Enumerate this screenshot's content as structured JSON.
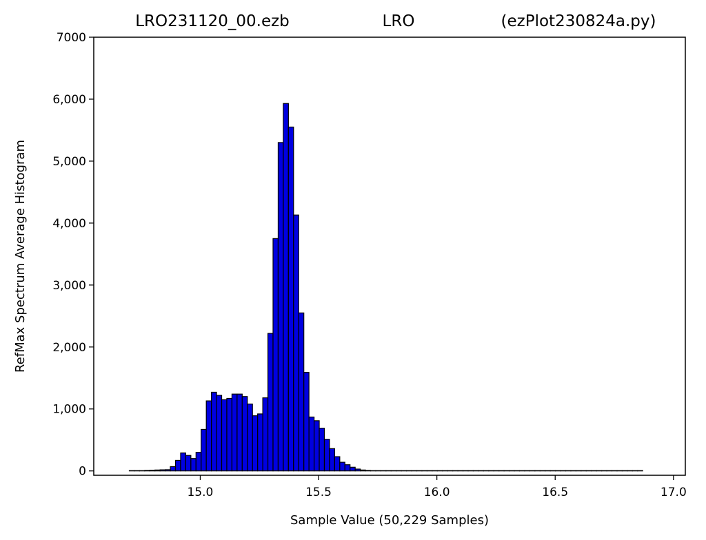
{
  "colors": {
    "bar_fill": "#0000e0",
    "bar_edge": "#000000",
    "axis": "#000000",
    "background": "#ffffff"
  },
  "chart_data": {
    "type": "bar",
    "title_parts": [
      "LRO231120_00.ezb",
      "LRO",
      "(ezPlot230824a.py)"
    ],
    "xlabel": "Sample Value (50,229 Samples)",
    "ylabel": "RefMax Spectrum Average Histogram",
    "xlim": [
      14.55,
      17.05
    ],
    "ylim": [
      -70,
      7000
    ],
    "xticks": [
      15.0,
      15.5,
      16.0,
      16.5,
      17.0
    ],
    "xtick_labels": [
      "15.0",
      "15.5",
      "16.0",
      "16.5",
      "17.0"
    ],
    "yticks": [
      0,
      1000,
      2000,
      3000,
      4000,
      5000,
      6000,
      7000
    ],
    "ytick_labels": [
      "0",
      "1,000",
      "2,000",
      "3,000",
      "4,000",
      "5,000",
      "6,000",
      "7000"
    ],
    "grid": false,
    "bin_start": 14.7,
    "bin_width": 0.0217,
    "values": [
      5,
      5,
      5,
      8,
      12,
      15,
      18,
      20,
      70,
      170,
      290,
      250,
      200,
      300,
      670,
      1130,
      1270,
      1220,
      1150,
      1170,
      1240,
      1240,
      1200,
      1080,
      890,
      920,
      1180,
      2220,
      3750,
      5300,
      5930,
      5550,
      4130,
      2550,
      1590,
      870,
      810,
      690,
      510,
      360,
      230,
      140,
      100,
      60,
      30,
      15,
      8,
      5,
      5,
      5,
      5,
      5,
      5,
      5,
      5,
      5,
      5,
      5,
      5,
      5,
      5,
      5,
      5,
      5,
      5,
      5,
      5,
      5,
      5,
      5,
      5,
      5,
      5,
      5,
      5,
      5,
      5,
      5,
      5,
      5,
      5,
      5,
      5,
      5,
      5,
      5,
      5,
      5,
      5,
      5,
      5,
      5,
      5,
      5,
      5,
      5,
      5,
      5,
      5,
      5
    ]
  }
}
